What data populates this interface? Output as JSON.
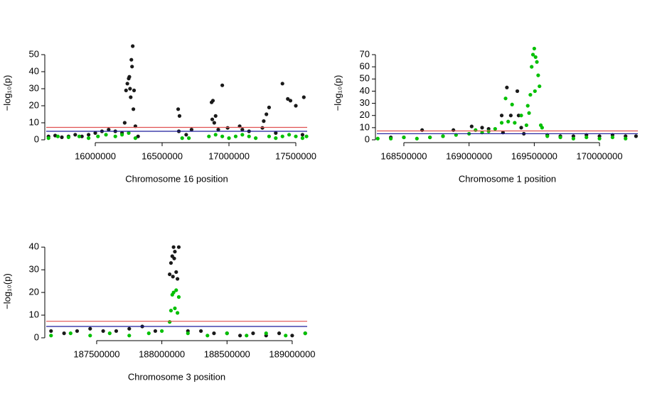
{
  "chart_data": [
    {
      "type": "scatter",
      "x_label": "Chromosome 16 position",
      "y_label": "−log₁₀(p)",
      "xlim": [
        15633000,
        17585000
      ],
      "xticks": [
        16000000,
        16500000,
        17000000,
        17500000
      ],
      "ylim": [
        0,
        55
      ],
      "yticks": [
        0,
        10,
        20,
        30,
        40,
        50
      ],
      "reference_lines": [
        {
          "value": 7.3,
          "color": "#e05050"
        },
        {
          "value": 5,
          "color": "#1c1c9c"
        }
      ],
      "series": [
        {
          "color": "#1a1a1a",
          "x": [
            15650000,
            15700000,
            15750000,
            15800000,
            15850000,
            15900000,
            15950000,
            16000000,
            16050000,
            16100000,
            16150000,
            16200000,
            16220000,
            16230000,
            16240000,
            16250000,
            16255000,
            16260000,
            16265000,
            16270000,
            16275000,
            16280000,
            16290000,
            16285000,
            16300000,
            16320000,
            16620000,
            16630000,
            16625000,
            16680000,
            16720000,
            16870000,
            16880000,
            16875000,
            16890000,
            16900000,
            16950000,
            16920000,
            16990000,
            17080000,
            17100000,
            17150000,
            17250000,
            17260000,
            17280000,
            17300000,
            17350000,
            17400000,
            17440000,
            17460000,
            17500000,
            17560000,
            17550000
          ],
          "values": [
            2,
            2.5,
            1.5,
            2,
            3,
            2,
            3,
            4,
            5,
            6,
            5,
            4,
            10,
            29,
            33,
            36,
            37,
            30,
            25,
            47,
            43,
            55,
            29,
            18,
            8,
            2,
            18,
            14,
            5,
            3,
            6,
            22,
            23,
            12,
            10,
            14,
            32,
            6,
            7,
            8,
            6,
            5,
            7,
            11,
            15,
            19,
            4,
            33,
            24,
            23,
            20,
            25,
            3
          ]
        },
        {
          "color": "#00c000",
          "x": [
            15650000,
            15720000,
            15800000,
            15880000,
            15950000,
            16020000,
            16080000,
            16150000,
            16200000,
            16250000,
            16300000,
            16650000,
            16700000,
            16850000,
            16900000,
            16950000,
            17000000,
            17050000,
            17100000,
            17150000,
            17200000,
            17300000,
            17350000,
            17400000,
            17450000,
            17500000,
            17550000,
            17580000
          ],
          "values": [
            1,
            2,
            1.5,
            2,
            1,
            2,
            3,
            2,
            3,
            4,
            1,
            1,
            1,
            2,
            3,
            2,
            1,
            2,
            3,
            2,
            1,
            2,
            1,
            2,
            3,
            2,
            1,
            2
          ]
        }
      ]
    },
    {
      "type": "scatter",
      "x_label": "Chromosome 1 position",
      "y_label": "−log₁₀(p)",
      "xlim": [
        168293000,
        170294000
      ],
      "xticks": [
        168500000,
        169000000,
        169500000,
        170000000
      ],
      "ylim": [
        0,
        77
      ],
      "yticks": [
        0,
        10,
        20,
        30,
        40,
        50,
        60,
        70
      ],
      "reference_lines": [
        {
          "value": 7.3,
          "color": "#e05050"
        },
        {
          "value": 5,
          "color": "#1c1c9c"
        }
      ],
      "series": [
        {
          "color": "#1a1a1a",
          "x": [
            168400000,
            168500000,
            168640000,
            168700000,
            168800000,
            168880000,
            169020000,
            169100000,
            169150000,
            169250000,
            169260000,
            169290000,
            169320000,
            169370000,
            169380000,
            169400000,
            169420000,
            169600000,
            169700000,
            169800000,
            169900000,
            170000000,
            170100000,
            170200000,
            170280000
          ],
          "values": [
            2,
            2,
            8,
            2,
            3,
            8,
            11,
            10,
            9,
            20,
            6,
            43,
            20,
            40,
            20,
            10,
            5,
            4,
            3,
            3,
            4,
            3,
            4,
            3,
            3
          ]
        },
        {
          "color": "#00c000",
          "x": [
            168300000,
            168400000,
            168500000,
            168600000,
            168700000,
            168800000,
            168900000,
            169000000,
            169050000,
            169100000,
            169150000,
            169200000,
            169250000,
            169280000,
            169300000,
            169330000,
            169350000,
            169400000,
            169440000,
            169450000,
            169460000,
            169470000,
            169480000,
            169490000,
            169500000,
            169505000,
            169510000,
            169520000,
            169530000,
            169540000,
            169550000,
            169560000,
            169600000,
            169700000,
            169800000,
            169900000,
            170000000,
            170100000,
            170200000
          ],
          "values": [
            1,
            1,
            2,
            1,
            2,
            3,
            4,
            5,
            8,
            6,
            7,
            9,
            14,
            34,
            15,
            29,
            14,
            20,
            12,
            28,
            22,
            37,
            60,
            70,
            75,
            40,
            68,
            64,
            53,
            44,
            12,
            10,
            3,
            2,
            1,
            2,
            1,
            2,
            1
          ]
        }
      ]
    },
    {
      "type": "scatter",
      "x_label": "Chromosome 3 position",
      "y_label": "−log₁₀(p)",
      "xlim": [
        187113000,
        189115000
      ],
      "xticks": [
        187500000,
        188000000,
        188500000,
        189000000
      ],
      "ylim": [
        0,
        41
      ],
      "yticks": [
        0,
        10,
        20,
        30,
        40
      ],
      "reference_lines": [
        {
          "value": 7.3,
          "color": "#e05050"
        },
        {
          "value": 5,
          "color": "#1c1c9c"
        }
      ],
      "series": [
        {
          "color": "#1a1a1a",
          "x": [
            187150000,
            187250000,
            187350000,
            187450000,
            187550000,
            187650000,
            187750000,
            187850000,
            187950000,
            188060000,
            188070000,
            188080000,
            188090000,
            188100000,
            188110000,
            188120000,
            188130000,
            188085000,
            188095000,
            188200000,
            188300000,
            188400000,
            188500000,
            188600000,
            188700000,
            188800000,
            188900000,
            189000000,
            189100000
          ],
          "values": [
            3,
            2,
            3,
            4,
            3,
            3,
            4,
            5,
            3,
            28,
            33,
            36,
            40,
            38,
            29,
            26,
            40,
            27,
            35,
            3,
            3,
            2,
            2,
            1,
            2,
            1,
            2,
            1,
            2
          ]
        },
        {
          "color": "#00c000",
          "x": [
            187150000,
            187300000,
            187450000,
            187600000,
            187750000,
            187900000,
            188000000,
            188060000,
            188070000,
            188080000,
            188090000,
            188100000,
            188110000,
            188120000,
            188130000,
            188200000,
            188350000,
            188500000,
            188650000,
            188800000,
            188950000,
            189100000
          ],
          "values": [
            1,
            2,
            1,
            2,
            1,
            2,
            3,
            7,
            12,
            19,
            20,
            13,
            21,
            11,
            18,
            2,
            1,
            2,
            1,
            2,
            1,
            2
          ]
        }
      ]
    }
  ]
}
